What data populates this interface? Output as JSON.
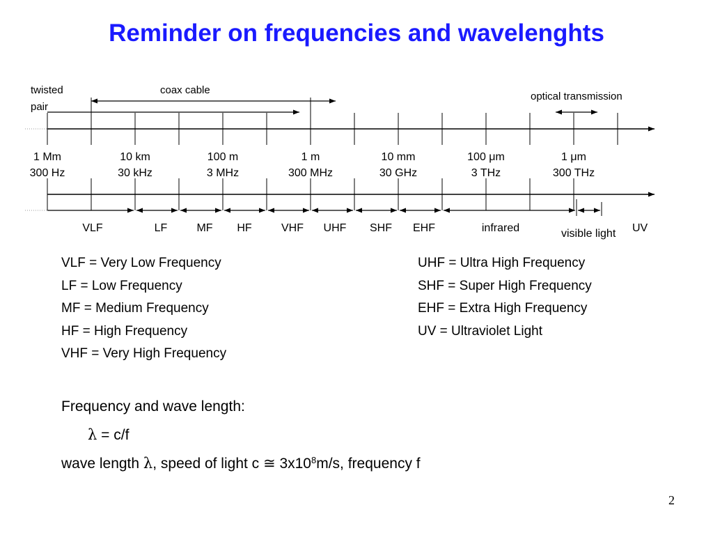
{
  "title": "Reminder on frequencies and wavelenghts",
  "top_labels": {
    "twisted_pair_1": "twisted",
    "twisted_pair_2": "pair",
    "coax_cable": "coax cable",
    "optical_transmission": "optical transmission"
  },
  "scale_points": [
    {
      "wavelength": "1 Mm",
      "frequency": "300 Hz"
    },
    {
      "wavelength": "10 km",
      "frequency": "30 kHz"
    },
    {
      "wavelength": "100 m",
      "frequency": "3 MHz"
    },
    {
      "wavelength": "1 m",
      "frequency": "300 MHz"
    },
    {
      "wavelength": "10 mm",
      "frequency": "30 GHz"
    },
    {
      "wavelength": "100 μm",
      "frequency": "3 THz"
    },
    {
      "wavelength": "1 μm",
      "frequency": "300 THz"
    }
  ],
  "bands": [
    "VLF",
    "LF",
    "MF",
    "HF",
    "VHF",
    "UHF",
    "SHF",
    "EHF",
    "infrared"
  ],
  "visible_light_label": "visible light",
  "uv_label": "UV",
  "definitions_left": [
    "VLF = Very Low Frequency",
    "LF = Low Frequency",
    "MF = Medium Frequency",
    "HF = High Frequency",
    "VHF = Very High Frequency"
  ],
  "definitions_right": [
    "UHF = Ultra High Frequency",
    "SHF = Super High Frequency",
    "EHF = Extra High Frequency",
    "UV = Ultraviolet Light"
  ],
  "formula": {
    "heading": "Frequency and wave length:",
    "equation_symbol": "λ",
    "equation_rest": " = c/f",
    "line3_a": "wave length ",
    "line3_lambda": "λ",
    "line3_b": ", speed of light c ",
    "line3_approx": "≅",
    "line3_c": " 3x10",
    "line3_exp": "8",
    "line3_d": "m/s, frequency f"
  },
  "page_number": "2",
  "colors": {
    "title": "#1a1aff"
  }
}
